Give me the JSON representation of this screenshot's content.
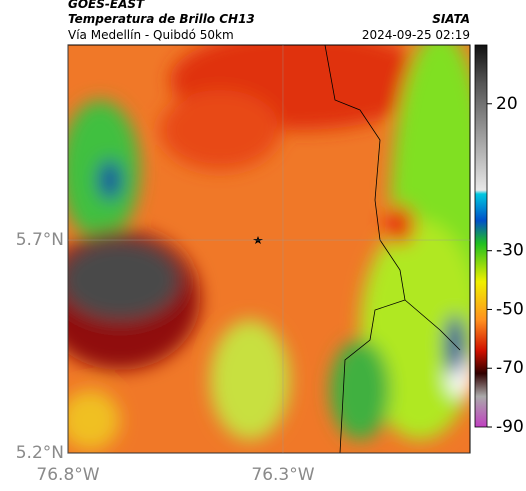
{
  "header": {
    "title": "GOES-EAST",
    "subtitle": "Temperatura de Brillo CH13",
    "region": "Vía Medellín - Quibdó 50km",
    "source": "SIATA",
    "datetime": "2024-09-25 02:19"
  },
  "map": {
    "xlim": [
      -76.8,
      -75.865
    ],
    "ylim": [
      5.2,
      6.158
    ],
    "xticks": [
      {
        "value": -76.8,
        "label": "76.8°W"
      },
      {
        "value": -76.3,
        "label": "76.3°W"
      }
    ],
    "yticks": [
      {
        "value": 5.2,
        "label": "5.2°N"
      },
      {
        "value": 5.7,
        "label": "5.7°N"
      }
    ],
    "colorbar": {
      "clim": [
        -90,
        40
      ],
      "ticks": [
        20,
        -30,
        -50,
        -70,
        -90
      ]
    }
  }
}
